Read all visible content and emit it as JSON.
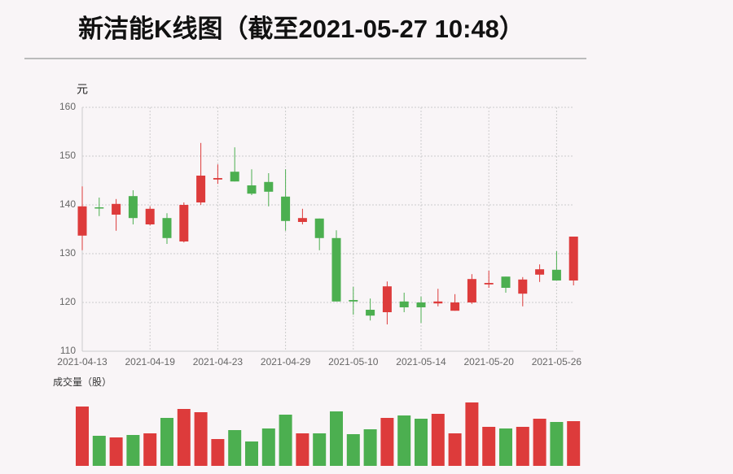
{
  "chart_data": {
    "type": "candlestick",
    "title": "新洁能K线图（截至2021-05-27 10:48）",
    "y_unit": "元",
    "volume_label": "成交量（股）",
    "categories": [
      "2021-04-13",
      null,
      null,
      null,
      "2021-04-19",
      null,
      null,
      null,
      "2021-04-23",
      null,
      null,
      null,
      "2021-04-29",
      null,
      null,
      null,
      "2021-05-10",
      null,
      null,
      null,
      "2021-05-14",
      null,
      null,
      null,
      "2021-05-20",
      null,
      null,
      null,
      "2021-05-26",
      null
    ],
    "open": [
      133.7,
      139.5,
      138.0,
      141.8,
      136.0,
      137.3,
      132.5,
      140.5,
      145.2,
      146.8,
      144.0,
      144.7,
      141.7,
      136.5,
      137.2,
      133.2,
      120.5,
      118.5,
      118.0,
      120.2,
      120.0,
      119.8,
      118.3,
      120.0,
      123.7,
      125.3,
      121.8,
      125.7,
      126.7,
      124.5
    ],
    "high": [
      143.8,
      141.5,
      141.2,
      143.0,
      139.7,
      138.3,
      140.5,
      152.7,
      148.3,
      151.8,
      147.3,
      146.5,
      147.3,
      139.2,
      137.2,
      134.8,
      123.2,
      120.8,
      124.3,
      122.0,
      121.2,
      122.8,
      121.7,
      125.8,
      126.5,
      125.3,
      125.2,
      127.8,
      130.5,
      133.5
    ],
    "low": [
      130.7,
      137.7,
      134.7,
      136.0,
      135.8,
      132.0,
      132.3,
      140.0,
      144.3,
      144.8,
      142.0,
      139.7,
      134.7,
      136.0,
      130.7,
      120.2,
      117.5,
      116.3,
      115.5,
      118.0,
      115.8,
      119.2,
      118.3,
      119.7,
      123.0,
      122.0,
      119.2,
      124.2,
      124.5,
      123.5
    ],
    "close": [
      139.7,
      139.3,
      140.2,
      137.3,
      139.2,
      133.2,
      140.0,
      146.0,
      145.5,
      144.8,
      142.3,
      142.7,
      136.7,
      137.3,
      133.2,
      120.2,
      120.2,
      117.3,
      123.3,
      119.0,
      119.0,
      120.2,
      120.0,
      124.8,
      124.0,
      123.0,
      124.7,
      126.8,
      124.5,
      133.5
    ],
    "volume": [
      73,
      37,
      35,
      38,
      40,
      59,
      70,
      66,
      33,
      44,
      30,
      46,
      63,
      40,
      40,
      67,
      39,
      45,
      59,
      62,
      58,
      64,
      40,
      78,
      48,
      46,
      48,
      58,
      54,
      55
    ],
    "up_color": "#dd3b3b",
    "down_color": "#4caf50",
    "ylim": [
      110,
      160
    ],
    "yticks": [
      110,
      120,
      130,
      140,
      150,
      160
    ],
    "grid": true
  }
}
